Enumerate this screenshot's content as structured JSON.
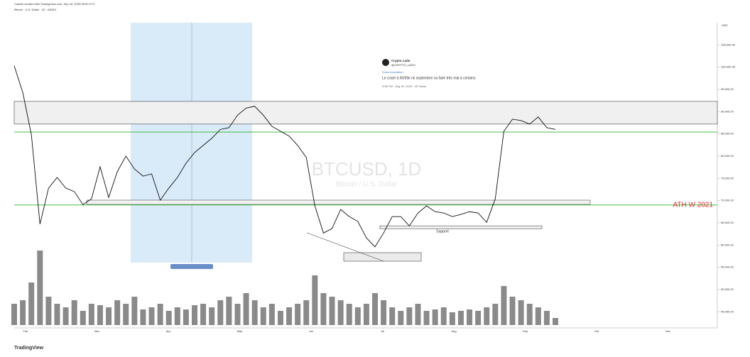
{
  "header": {
    "created": "Cassini created with TradingView.com, Sep 16, 2025 08:00 UTC",
    "symbol": "Bitcoin · U.S. Dollar · 1D · INDEX",
    "brand": "TradingView"
  },
  "tweet": {
    "name": "Crypto Lado",
    "handle": "@CRYPTO_LADO",
    "translate": "Show translation",
    "text": "Le crash à 50/55k mi septembre va faire très mal à certains",
    "meta": "3:55 PM · Aug 30, 2025 · 49 Views"
  },
  "chart_data": {
    "type": "line",
    "title": "BTCUSD, 1D",
    "subtitle": "Bitcoin / U.S. Dollar",
    "y_unit": "USD",
    "series": [
      {
        "name": "BTCUSD",
        "color": "#111111",
        "values": [
          100300,
          94300,
          84800,
          64700,
          72800,
          75200,
          72800,
          72000,
          69100,
          70400,
          77600,
          70700,
          76500,
          80000,
          77100,
          75500,
          76000,
          70100,
          72800,
          75200,
          78400,
          80800,
          82400,
          84000,
          86000,
          86400,
          89200,
          90800,
          91200,
          89200,
          86700,
          85600,
          84500,
          82400,
          79700,
          68800,
          62700,
          63700,
          68000,
          66400,
          65300,
          61600,
          59600,
          62700,
          66400,
          66400,
          64300,
          67200,
          68800,
          67500,
          67200,
          66400,
          66900,
          67500,
          67200,
          65100,
          70400,
          85600,
          88300,
          88000,
          87200,
          88800,
          86400,
          86000
        ]
      },
      {
        "name": "Volume",
        "color": "#8a8a8a",
        "values": [
          30,
          35,
          60,
          105,
          40,
          30,
          25,
          35,
          20,
          30,
          28,
          25,
          35,
          30,
          40,
          22,
          25,
          30,
          20,
          25,
          22,
          28,
          30,
          25,
          35,
          40,
          30,
          45,
          35,
          25,
          30,
          20,
          25,
          30,
          35,
          70,
          45,
          40,
          35,
          30,
          25,
          30,
          45,
          35,
          25,
          20,
          25,
          30,
          20,
          22,
          25,
          18,
          20,
          22,
          20,
          25,
          30,
          55,
          40,
          35,
          30,
          25,
          20,
          10
        ]
      }
    ],
    "x_labels": [
      "Feb",
      "Mar",
      "Apr",
      "May",
      "Jun",
      "Jul",
      "Aug",
      "Sep",
      "Oct",
      "Nov"
    ],
    "ylim": [
      42000,
      110000
    ],
    "yticks": [
      {
        "value": 45000,
        "label": "45,000.00"
      },
      {
        "value": 50000,
        "label": "50,000.00"
      },
      {
        "value": 55000,
        "label": "55,000.00"
      },
      {
        "value": 60000,
        "label": "60,000.00"
      },
      {
        "value": 65000,
        "label": "65,000.00"
      },
      {
        "value": 70000,
        "label": "70,000.00"
      },
      {
        "value": 75000,
        "label": "75,000.00"
      },
      {
        "value": 80000,
        "label": "80,000.00"
      },
      {
        "value": 85000,
        "label": "85,000.00"
      },
      {
        "value": 90000,
        "label": "90,000.00"
      },
      {
        "value": 95000,
        "label": "95,000.00"
      },
      {
        "value": 100000,
        "label": "100,000.00"
      },
      {
        "value": 105000,
        "label": "105,000.00"
      }
    ],
    "levels": [
      {
        "value": 69000,
        "label": "ATH W 2021",
        "color": "#2db52d"
      },
      {
        "value": 85400,
        "color": "#2db52d"
      }
    ],
    "zone": [
      87200,
      92300
    ],
    "support": {
      "label": "Support",
      "value": 64000
    },
    "grid": false
  }
}
